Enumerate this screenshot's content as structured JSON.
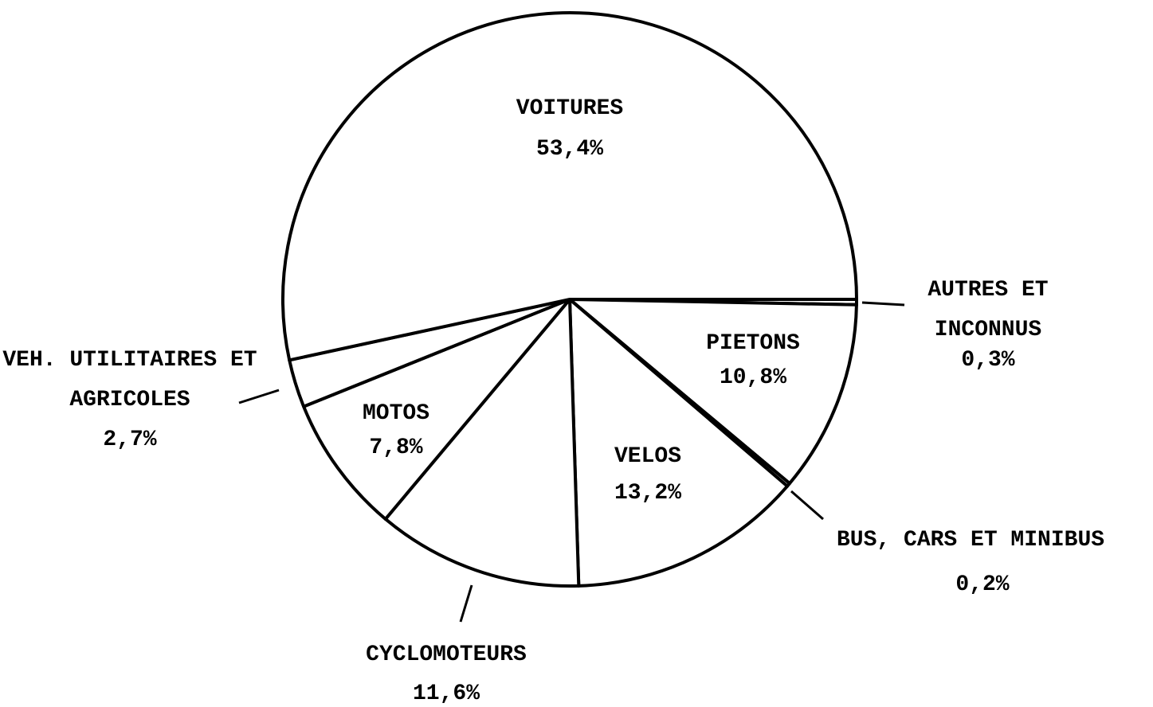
{
  "chart_data": {
    "type": "pie",
    "categories": [
      "VOITURES",
      "VEH. UTILITAIRES ET AGRICOLES",
      "MOTOS",
      "CYCLOMOTEURS",
      "VELOS",
      "BUS, CARS ET MINIBUS",
      "PIETONS",
      "AUTRES ET INCONNUS"
    ],
    "values": [
      53.4,
      2.7,
      7.8,
      11.6,
      13.2,
      0.2,
      10.8,
      0.3
    ],
    "value_labels": [
      "53,4%",
      "2,7%",
      "7,8%",
      "11,6%",
      "13,2%",
      "0,2%",
      "10,8%",
      "0,3%"
    ],
    "color": "#ffffff"
  }
}
